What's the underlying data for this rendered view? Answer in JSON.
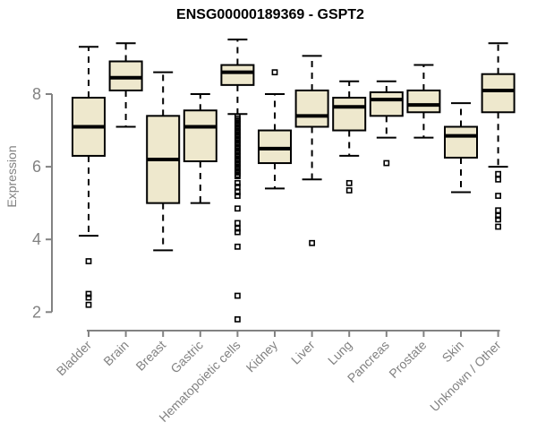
{
  "colors": {
    "background": "#FFFFFF",
    "box_fill": "#EEE8CD",
    "box_border": "#000000",
    "median": "#000000",
    "axis": "#828282",
    "tick_label": "#828282",
    "title_text": "#000000"
  },
  "chart_data": {
    "type": "boxplot",
    "title": "ENSG00000189369 - GSPT2",
    "xlabel": "",
    "ylabel": "Expression",
    "y_ticks": [
      2,
      4,
      6,
      8
    ],
    "ylim": [
      1.5,
      9.7
    ],
    "grid": false,
    "legend": "none",
    "categories": [
      "Bladder",
      "Brain",
      "Breast",
      "Gastric",
      "Hematopoietic cells",
      "Kidney",
      "Liver",
      "Lung",
      "Pancreas",
      "Prostate",
      "Skin",
      "Unknown / Other"
    ],
    "series": [
      {
        "name": "Bladder",
        "whisker_low": 4.1,
        "q1": 6.3,
        "median": 7.1,
        "q3": 7.9,
        "whisker_high": 9.3,
        "outliers": [
          3.4,
          2.5,
          2.4,
          2.2
        ]
      },
      {
        "name": "Brain",
        "whisker_low": 7.1,
        "q1": 8.1,
        "median": 8.45,
        "q3": 8.9,
        "whisker_high": 9.4,
        "outliers": []
      },
      {
        "name": "Breast",
        "whisker_low": 3.7,
        "q1": 5.0,
        "median": 6.2,
        "q3": 7.4,
        "whisker_high": 8.6,
        "outliers": []
      },
      {
        "name": "Gastric",
        "whisker_low": 5.0,
        "q1": 6.15,
        "median": 7.1,
        "q3": 7.55,
        "whisker_high": 8.0,
        "outliers": []
      },
      {
        "name": "Hematopoietic cells",
        "whisker_low": 7.45,
        "q1": 8.25,
        "median": 8.6,
        "q3": 8.8,
        "whisker_high": 9.5,
        "outliers": [
          7.38,
          7.32,
          7.27,
          7.21,
          7.16,
          7.1,
          7.05,
          6.99,
          6.94,
          6.88,
          6.83,
          6.77,
          6.72,
          6.66,
          6.61,
          6.55,
          6.5,
          6.44,
          6.39,
          6.33,
          6.28,
          6.22,
          6.17,
          6.11,
          6.06,
          6.0,
          5.95,
          5.89,
          5.84,
          5.78,
          5.74,
          5.55,
          5.45,
          5.3,
          5.2,
          4.85,
          4.45,
          4.3,
          4.2,
          3.8,
          2.45,
          1.8
        ]
      },
      {
        "name": "Kidney",
        "whisker_low": 5.4,
        "q1": 6.1,
        "median": 6.5,
        "q3": 7.0,
        "whisker_high": 8.0,
        "outliers": [
          8.6
        ]
      },
      {
        "name": "Liver",
        "whisker_low": 5.65,
        "q1": 7.1,
        "median": 7.4,
        "q3": 8.1,
        "whisker_high": 9.05,
        "outliers": [
          3.9
        ]
      },
      {
        "name": "Lung",
        "whisker_low": 6.3,
        "q1": 7.0,
        "median": 7.65,
        "q3": 7.9,
        "whisker_high": 8.35,
        "outliers": [
          5.55,
          5.35
        ]
      },
      {
        "name": "Pancreas",
        "whisker_low": 6.8,
        "q1": 7.4,
        "median": 7.85,
        "q3": 8.05,
        "whisker_high": 8.35,
        "outliers": [
          6.1
        ]
      },
      {
        "name": "Prostate",
        "whisker_low": 6.8,
        "q1": 7.5,
        "median": 7.7,
        "q3": 8.1,
        "whisker_high": 8.8,
        "outliers": []
      },
      {
        "name": "Skin",
        "whisker_low": 5.3,
        "q1": 6.25,
        "median": 6.85,
        "q3": 7.1,
        "whisker_high": 7.75,
        "outliers": []
      },
      {
        "name": "Unknown / Other",
        "whisker_low": 6.0,
        "q1": 7.5,
        "median": 8.1,
        "q3": 8.55,
        "whisker_high": 9.4,
        "outliers": [
          5.8,
          5.65,
          5.2,
          4.8,
          4.65,
          4.55,
          4.35
        ]
      }
    ]
  }
}
